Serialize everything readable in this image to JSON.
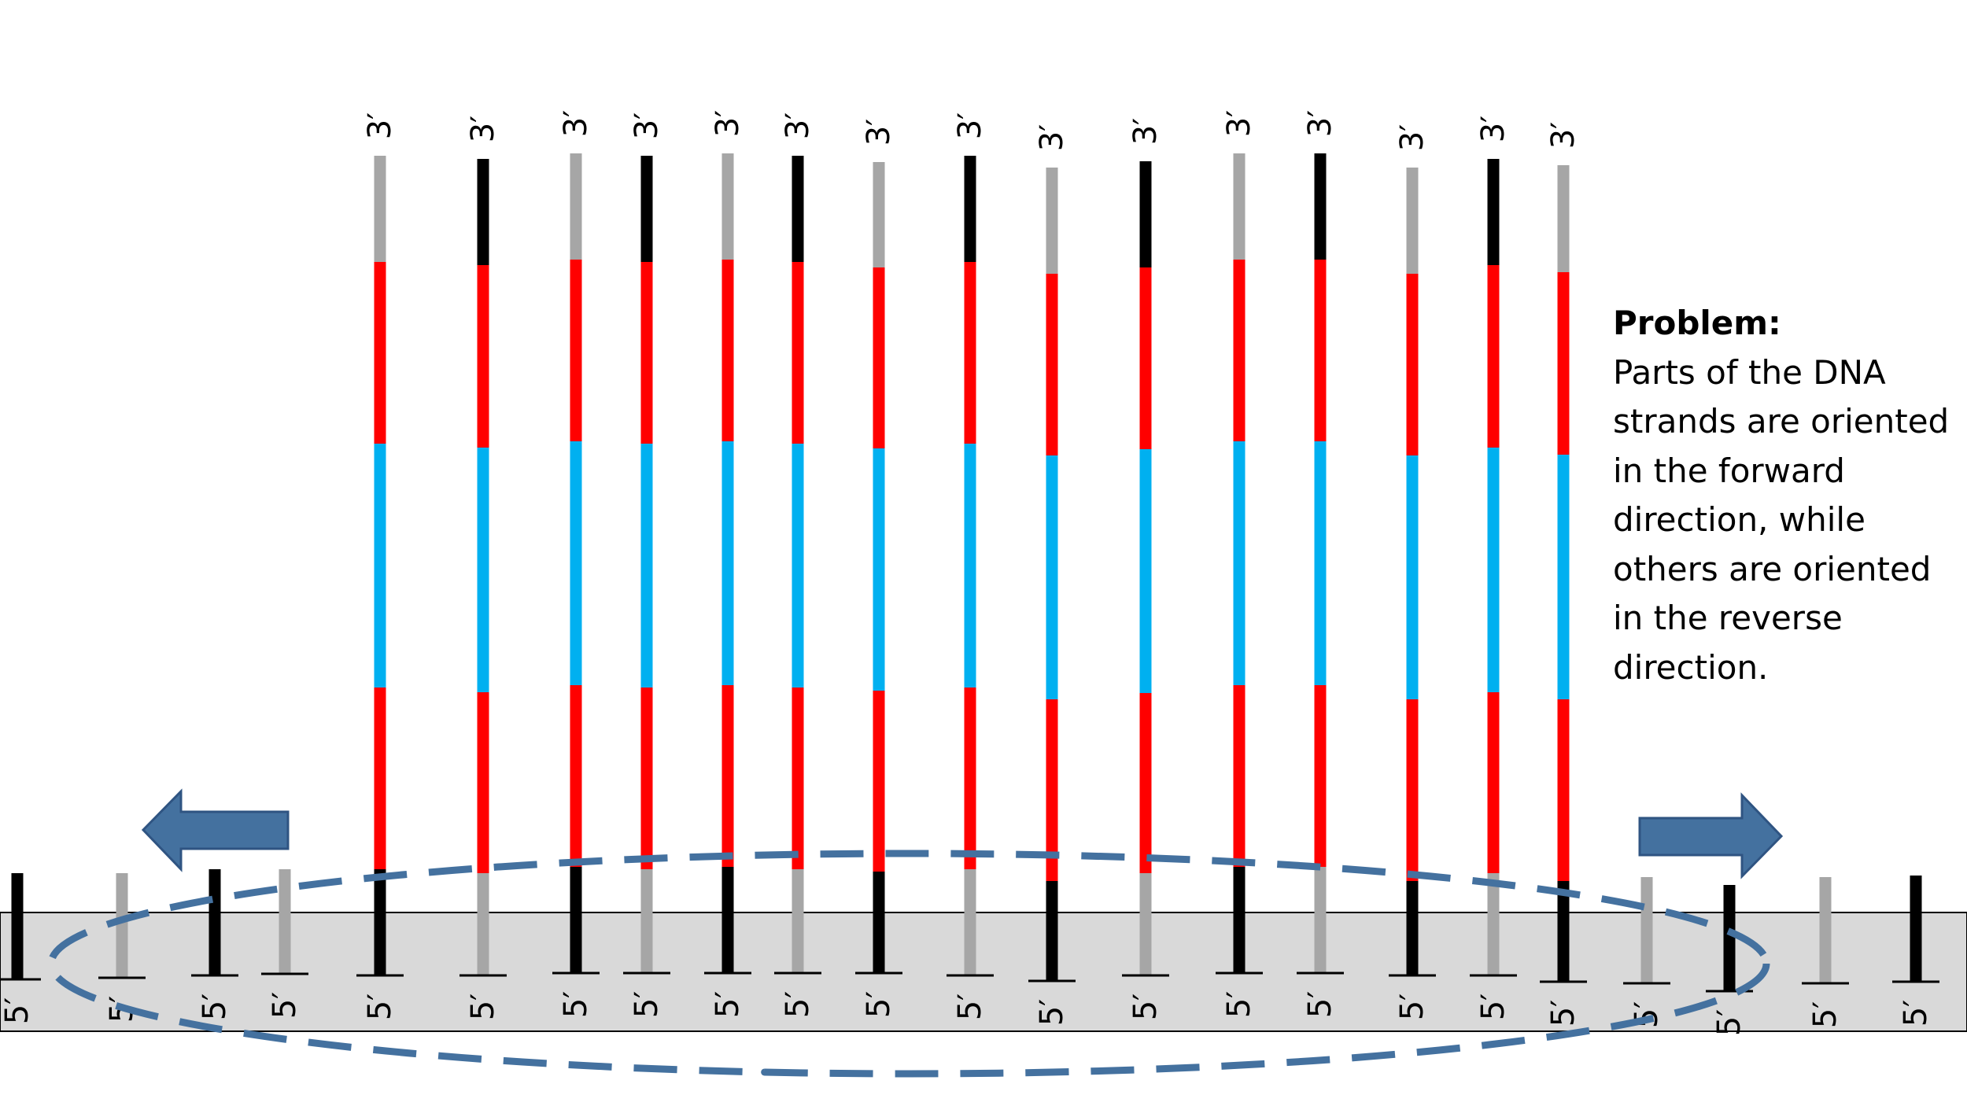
{
  "problem": {
    "title": "Problem:",
    "text": "Parts of the DNA strands are oriented in the forward direction, while others are oriented in the reverse direction."
  },
  "labels": {
    "three_prime": "3′",
    "five_prime": "5′"
  },
  "colors": {
    "surface": "#d9d9d9",
    "black": "#000000",
    "gray": "#a6a6a6",
    "red": "#ff0000",
    "blue": "#00b0f0",
    "arrow": "#44719f",
    "dashed_ellipse": "#44719f"
  },
  "strands": [
    {
      "anchor": "black",
      "cap": "gray"
    },
    {
      "anchor": "gray",
      "cap": "black"
    },
    {
      "anchor": "black",
      "cap": "gray"
    },
    {
      "anchor": "gray",
      "cap": "black"
    },
    {
      "anchor": "black",
      "cap": "gray"
    },
    {
      "anchor": "gray",
      "cap": "black"
    },
    {
      "anchor": "black",
      "cap": "gray"
    },
    {
      "anchor": "gray",
      "cap": "black"
    },
    {
      "anchor": "black",
      "cap": "gray"
    },
    {
      "anchor": "gray",
      "cap": "black"
    },
    {
      "anchor": "black",
      "cap": "gray"
    },
    {
      "anchor": "gray",
      "cap": "black"
    },
    {
      "anchor": "black",
      "cap": "gray"
    },
    {
      "anchor": "gray",
      "cap": "black"
    },
    {
      "anchor": "black",
      "cap": "gray"
    }
  ],
  "short_anchors": [
    {
      "color": "black"
    },
    {
      "color": "gray"
    },
    {
      "color": "black"
    },
    {
      "color": "gray"
    },
    {
      "color": "gray"
    },
    {
      "color": "black"
    },
    {
      "color": "gray"
    },
    {
      "color": "black"
    }
  ],
  "arrows": [
    {
      "direction": "left"
    },
    {
      "direction": "right"
    }
  ]
}
